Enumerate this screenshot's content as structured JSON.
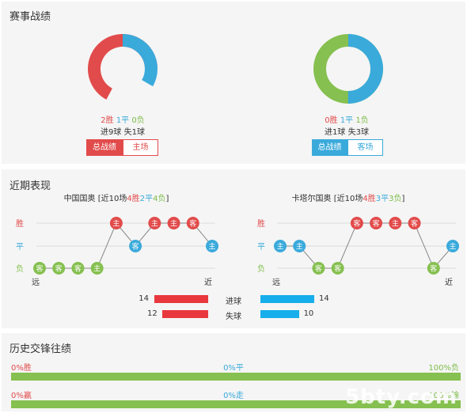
{
  "sections": {
    "match_record": "赛事战绩",
    "recent_form": "近期表现",
    "head_to_head": "历史交锋往绩"
  },
  "home_record": {
    "win": "2胜",
    "draw": "1平",
    "loss": "0负",
    "goals": "进9球",
    "conceded": "失1球",
    "tab_all": "总战绩",
    "tab_venue": "主场",
    "donut": {
      "win": 2,
      "draw": 1,
      "loss": 0
    }
  },
  "away_record": {
    "win": "0胜",
    "draw": "1平",
    "loss": "1负",
    "goals": "进1球",
    "conceded": "失3球",
    "tab_all": "总战绩",
    "tab_venue": "客场",
    "donut": {
      "win": 0,
      "draw": 1,
      "loss": 1
    }
  },
  "recent": {
    "row_labels": {
      "win": "胜",
      "draw": "平",
      "loss": "负"
    },
    "far": "远",
    "near": "近",
    "home": {
      "team": "中国国奥",
      "summary_prefix": "[近10场",
      "win": "4胜",
      "draw": "2平",
      "loss": "4负",
      "summary_suffix": "]",
      "results": [
        {
          "r": "L",
          "v": "客"
        },
        {
          "r": "L",
          "v": "客"
        },
        {
          "r": "L",
          "v": "客"
        },
        {
          "r": "L",
          "v": "主"
        },
        {
          "r": "W",
          "v": "主"
        },
        {
          "r": "D",
          "v": "客"
        },
        {
          "r": "W",
          "v": "主"
        },
        {
          "r": "W",
          "v": "主"
        },
        {
          "r": "W",
          "v": "客"
        },
        {
          "r": "D",
          "v": "主"
        }
      ]
    },
    "away": {
      "team": "卡塔尔国奥",
      "summary_prefix": "[近10场",
      "win": "4胜",
      "draw": "3平",
      "loss": "3负",
      "summary_suffix": "]",
      "results": [
        {
          "r": "D",
          "v": "主"
        },
        {
          "r": "D",
          "v": "主"
        },
        {
          "r": "L",
          "v": "客"
        },
        {
          "r": "L",
          "v": "客"
        },
        {
          "r": "W",
          "v": "客"
        },
        {
          "r": "W",
          "v": "客"
        },
        {
          "r": "W",
          "v": "主"
        },
        {
          "r": "W",
          "v": "客"
        },
        {
          "r": "L",
          "v": "客"
        },
        {
          "r": "D",
          "v": "主"
        }
      ]
    },
    "stats": {
      "goals_label": "进球",
      "conceded_label": "失球",
      "home_goals": 14,
      "home_conceded": 12,
      "away_goals": 14,
      "away_conceded": 10,
      "max": 14
    }
  },
  "h2h": {
    "row1": {
      "left": "0%胜",
      "mid": "0%平",
      "right": "100%负",
      "left_pct": 0,
      "mid_pct": 0,
      "right_pct": 100
    },
    "row2": {
      "left": "0%赢",
      "mid": "0%走",
      "right": "100%输",
      "left_pct": 0,
      "mid_pct": 0,
      "right_pct": 100
    }
  },
  "watermark": "5bty.com",
  "colors": {
    "win": "#e24b4b",
    "draw": "#3aaadb",
    "loss": "#86c050"
  }
}
